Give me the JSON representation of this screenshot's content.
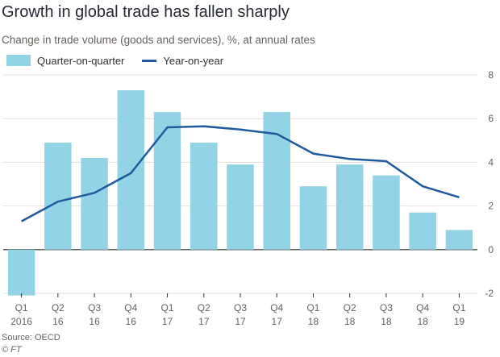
{
  "title": "Growth in global trade has fallen sharply",
  "subtitle": "Change in trade volume (goods and services), %, at annual rates",
  "source": "Source: OECD",
  "credit": "© FT",
  "colors": {
    "bar": "#93d3e6",
    "line": "#1f5a9e",
    "grid": "#e6dfd8",
    "zero": "#33302e",
    "text": "#66605c"
  },
  "chart_data": {
    "type": "bar",
    "categories": [
      [
        "Q1",
        "2016"
      ],
      [
        "Q2",
        "16"
      ],
      [
        "Q3",
        "16"
      ],
      [
        "Q4",
        "16"
      ],
      [
        "Q1",
        "17"
      ],
      [
        "Q2",
        "17"
      ],
      [
        "Q3",
        "17"
      ],
      [
        "Q4",
        "17"
      ],
      [
        "Q1",
        "18"
      ],
      [
        "Q2",
        "18"
      ],
      [
        "Q3",
        "18"
      ],
      [
        "Q4",
        "18"
      ],
      [
        "Q1",
        "19"
      ]
    ],
    "series": [
      {
        "name": "Quarter-on-quarter",
        "type": "bar",
        "values": [
          -2.1,
          4.9,
          4.2,
          7.3,
          6.3,
          4.9,
          3.9,
          6.3,
          2.9,
          3.9,
          3.4,
          1.7,
          0.9
        ]
      },
      {
        "name": "Year-on-year",
        "type": "line",
        "values": [
          1.3,
          2.2,
          2.6,
          3.5,
          5.6,
          5.65,
          5.5,
          5.3,
          4.4,
          4.15,
          4.05,
          2.9,
          2.4
        ]
      }
    ],
    "ylim": [
      -2,
      8
    ],
    "yticks": [
      -2,
      0,
      2,
      4,
      6,
      8
    ],
    "grid": true,
    "y_axis_side": "right",
    "legend_position": "top-left"
  }
}
